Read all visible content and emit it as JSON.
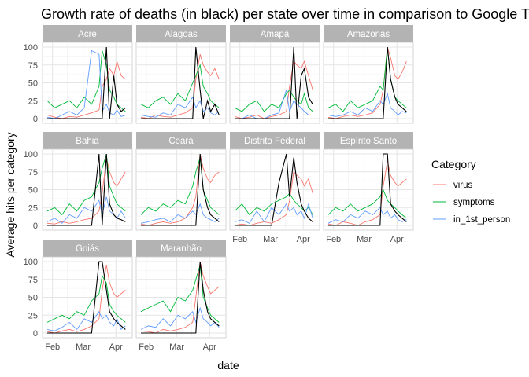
{
  "chart_data": {
    "type": "line",
    "title": "Growth rate of deaths (in black) per state over time in comparison to Google T",
    "xlabel": "date",
    "ylabel": "Average hits per category",
    "ylim": [
      0,
      100
    ],
    "yticks": [
      "0",
      "25",
      "50",
      "75",
      "100"
    ],
    "xticks": [
      "Feb",
      "Mar",
      "Apr"
    ],
    "grid": true,
    "legend": {
      "title": "Category",
      "placement": "right",
      "entries": [
        {
          "name": "virus",
          "color": "#F8766D"
        },
        {
          "name": "symptoms",
          "color": "#00BA38"
        },
        {
          "name": "in_1st_person",
          "color": "#619CFF"
        }
      ]
    },
    "deaths_color": "#000000",
    "x_domain": [
      "2020-01-27",
      "2020-04-12"
    ],
    "panels": [
      {
        "state": "Acre",
        "dates": [
          "2020-01-27",
          "2020-02-03",
          "2020-02-10",
          "2020-02-17",
          "2020-02-24",
          "2020-03-02",
          "2020-03-09",
          "2020-03-16",
          "2020-03-19",
          "2020-03-23",
          "2020-03-26",
          "2020-03-30",
          "2020-04-02",
          "2020-04-06",
          "2020-04-10"
        ],
        "virus": [
          5,
          2,
          0,
          3,
          2,
          5,
          8,
          12,
          45,
          55,
          70,
          60,
          80,
          60,
          55
        ],
        "symptoms": [
          25,
          15,
          20,
          25,
          15,
          30,
          20,
          45,
          95,
          75,
          40,
          30,
          20,
          15,
          10
        ],
        "in_1st_person": [
          2,
          0,
          5,
          10,
          5,
          15,
          95,
          90,
          10,
          20,
          8,
          5,
          12,
          3,
          5
        ],
        "deaths": [
          0,
          0,
          0,
          0,
          0,
          0,
          0,
          0,
          0,
          100,
          0,
          60,
          20,
          10,
          15
        ]
      },
      {
        "state": "Alagoas",
        "dates": [
          "2020-01-27",
          "2020-02-03",
          "2020-02-10",
          "2020-02-17",
          "2020-02-24",
          "2020-03-02",
          "2020-03-09",
          "2020-03-16",
          "2020-03-19",
          "2020-03-23",
          "2020-03-26",
          "2020-03-30",
          "2020-04-02",
          "2020-04-06",
          "2020-04-10"
        ],
        "virus": [
          2,
          0,
          5,
          3,
          2,
          5,
          8,
          15,
          55,
          90,
          75,
          65,
          60,
          70,
          55
        ],
        "symptoms": [
          20,
          15,
          25,
          30,
          20,
          35,
          25,
          50,
          60,
          75,
          45,
          35,
          25,
          20,
          15
        ],
        "in_1st_person": [
          5,
          3,
          2,
          8,
          5,
          20,
          15,
          30,
          15,
          25,
          10,
          15,
          8,
          5,
          10
        ],
        "deaths": [
          0,
          0,
          0,
          0,
          0,
          0,
          0,
          0,
          100,
          40,
          0,
          25,
          10,
          20,
          5
        ]
      },
      {
        "state": "Amapá",
        "dates": [
          "2020-01-27",
          "2020-02-03",
          "2020-02-10",
          "2020-02-17",
          "2020-02-24",
          "2020-03-02",
          "2020-03-09",
          "2020-03-16",
          "2020-03-19",
          "2020-03-23",
          "2020-03-26",
          "2020-03-30",
          "2020-04-02",
          "2020-04-06",
          "2020-04-10"
        ],
        "virus": [
          3,
          0,
          2,
          5,
          0,
          3,
          5,
          10,
          45,
          80,
          75,
          70,
          80,
          60,
          40
        ],
        "symptoms": [
          15,
          10,
          20,
          25,
          10,
          20,
          15,
          35,
          40,
          30,
          25,
          20,
          35,
          15,
          10
        ],
        "in_1st_person": [
          0,
          0,
          5,
          0,
          0,
          5,
          8,
          40,
          10,
          25,
          20,
          15,
          10,
          5,
          5
        ],
        "deaths": [
          0,
          0,
          0,
          0,
          0,
          0,
          0,
          0,
          0,
          100,
          0,
          60,
          70,
          30,
          20
        ]
      },
      {
        "state": "Amazonas",
        "dates": [
          "2020-01-27",
          "2020-02-03",
          "2020-02-10",
          "2020-02-17",
          "2020-02-24",
          "2020-03-02",
          "2020-03-09",
          "2020-03-16",
          "2020-03-19",
          "2020-03-23",
          "2020-03-26",
          "2020-03-30",
          "2020-04-02",
          "2020-04-06",
          "2020-04-10"
        ],
        "virus": [
          2,
          0,
          3,
          5,
          3,
          5,
          8,
          20,
          40,
          100,
          85,
          60,
          55,
          65,
          80
        ],
        "symptoms": [
          15,
          20,
          10,
          25,
          15,
          20,
          25,
          45,
          40,
          100,
          55,
          30,
          25,
          20,
          15
        ],
        "in_1st_person": [
          5,
          3,
          5,
          10,
          5,
          15,
          10,
          25,
          20,
          35,
          15,
          10,
          5,
          10,
          8
        ],
        "deaths": [
          0,
          0,
          0,
          0,
          0,
          0,
          0,
          0,
          0,
          100,
          55,
          30,
          20,
          15,
          10
        ]
      },
      {
        "state": "Bahia",
        "dates": [
          "2020-01-27",
          "2020-02-03",
          "2020-02-10",
          "2020-02-17",
          "2020-02-24",
          "2020-03-02",
          "2020-03-09",
          "2020-03-16",
          "2020-03-19",
          "2020-03-23",
          "2020-03-26",
          "2020-03-30",
          "2020-04-02",
          "2020-04-06",
          "2020-04-10"
        ],
        "virus": [
          3,
          2,
          5,
          3,
          5,
          8,
          10,
          20,
          45,
          95,
          75,
          60,
          55,
          65,
          75
        ],
        "symptoms": [
          20,
          25,
          15,
          30,
          20,
          35,
          40,
          60,
          80,
          100,
          55,
          40,
          30,
          25,
          20
        ],
        "in_1st_person": [
          5,
          10,
          3,
          15,
          10,
          25,
          20,
          35,
          15,
          40,
          20,
          15,
          10,
          20,
          10
        ],
        "deaths": [
          0,
          0,
          0,
          0,
          0,
          0,
          0,
          100,
          0,
          100,
          30,
          15,
          10,
          8,
          5
        ]
      },
      {
        "state": "Ceará",
        "dates": [
          "2020-01-27",
          "2020-02-03",
          "2020-02-10",
          "2020-02-17",
          "2020-02-24",
          "2020-03-02",
          "2020-03-09",
          "2020-03-16",
          "2020-03-19",
          "2020-03-23",
          "2020-03-26",
          "2020-03-30",
          "2020-04-02",
          "2020-04-06",
          "2020-04-10"
        ],
        "virus": [
          2,
          0,
          3,
          5,
          3,
          5,
          10,
          25,
          40,
          100,
          80,
          65,
          60,
          70,
          75
        ],
        "symptoms": [
          15,
          25,
          20,
          30,
          25,
          35,
          30,
          55,
          75,
          95,
          50,
          35,
          25,
          20,
          15
        ],
        "in_1st_person": [
          3,
          5,
          8,
          10,
          5,
          15,
          10,
          20,
          15,
          30,
          15,
          10,
          8,
          5,
          10
        ],
        "deaths": [
          0,
          0,
          0,
          0,
          0,
          0,
          0,
          0,
          0,
          100,
          50,
          25,
          15,
          10,
          5
        ]
      },
      {
        "state": "Distrito Federal",
        "dates": [
          "2020-01-27",
          "2020-02-03",
          "2020-02-10",
          "2020-02-17",
          "2020-02-24",
          "2020-03-02",
          "2020-03-09",
          "2020-03-16",
          "2020-03-19",
          "2020-03-23",
          "2020-03-26",
          "2020-03-30",
          "2020-04-02",
          "2020-04-06",
          "2020-04-10"
        ],
        "virus": [
          0,
          2,
          0,
          3,
          5,
          3,
          8,
          15,
          35,
          75,
          70,
          65,
          55,
          65,
          45
        ],
        "symptoms": [
          20,
          30,
          15,
          25,
          20,
          30,
          35,
          40,
          45,
          35,
          30,
          25,
          20,
          25,
          15
        ],
        "in_1st_person": [
          5,
          8,
          3,
          20,
          5,
          25,
          15,
          30,
          20,
          25,
          15,
          20,
          10,
          30,
          10
        ],
        "deaths": [
          0,
          0,
          0,
          0,
          0,
          0,
          60,
          100,
          40,
          95,
          60,
          30,
          20,
          10,
          5
        ]
      },
      {
        "state": "Espírito Santo",
        "dates": [
          "2020-01-27",
          "2020-02-03",
          "2020-02-10",
          "2020-02-17",
          "2020-02-24",
          "2020-03-02",
          "2020-03-09",
          "2020-03-16",
          "2020-03-19",
          "2020-03-23",
          "2020-03-26",
          "2020-03-30",
          "2020-04-02",
          "2020-04-06",
          "2020-04-10"
        ],
        "virus": [
          2,
          0,
          5,
          3,
          0,
          5,
          8,
          15,
          55,
          90,
          70,
          60,
          55,
          60,
          65
        ],
        "symptoms": [
          15,
          25,
          20,
          30,
          20,
          25,
          30,
          40,
          50,
          35,
          30,
          25,
          20,
          15,
          10
        ],
        "in_1st_person": [
          3,
          8,
          5,
          15,
          10,
          20,
          15,
          25,
          15,
          20,
          10,
          15,
          8,
          5,
          8
        ],
        "deaths": [
          0,
          0,
          0,
          0,
          0,
          0,
          0,
          0,
          100,
          100,
          30,
          20,
          15,
          10,
          5
        ]
      },
      {
        "state": "Goiás",
        "dates": [
          "2020-01-27",
          "2020-02-03",
          "2020-02-10",
          "2020-02-17",
          "2020-02-24",
          "2020-03-02",
          "2020-03-09",
          "2020-03-16",
          "2020-03-19",
          "2020-03-23",
          "2020-03-26",
          "2020-03-30",
          "2020-04-02",
          "2020-04-06",
          "2020-04-10"
        ],
        "virus": [
          2,
          0,
          3,
          5,
          2,
          5,
          10,
          20,
          60,
          95,
          70,
          55,
          50,
          55,
          60
        ],
        "symptoms": [
          15,
          20,
          25,
          20,
          30,
          25,
          45,
          55,
          80,
          70,
          40,
          30,
          25,
          20,
          15
        ],
        "in_1st_person": [
          5,
          3,
          8,
          15,
          5,
          20,
          15,
          30,
          20,
          25,
          15,
          10,
          20,
          5,
          10
        ],
        "deaths": [
          0,
          0,
          0,
          0,
          0,
          0,
          0,
          100,
          100,
          60,
          30,
          20,
          15,
          10,
          5
        ]
      },
      {
        "state": "Maranhão",
        "dates": [
          "2020-01-27",
          "2020-02-03",
          "2020-02-10",
          "2020-02-17",
          "2020-02-24",
          "2020-03-02",
          "2020-03-09",
          "2020-03-16",
          "2020-03-19",
          "2020-03-23",
          "2020-03-26",
          "2020-03-30",
          "2020-04-02",
          "2020-04-06",
          "2020-04-10"
        ],
        "virus": [
          3,
          2,
          0,
          5,
          3,
          5,
          8,
          15,
          50,
          100,
          80,
          65,
          55,
          60,
          65
        ],
        "symptoms": [
          30,
          35,
          40,
          45,
          30,
          50,
          45,
          60,
          75,
          95,
          50,
          35,
          25,
          20,
          15
        ],
        "in_1st_person": [
          5,
          10,
          8,
          20,
          10,
          25,
          20,
          30,
          15,
          35,
          20,
          15,
          10,
          15,
          8
        ],
        "deaths": [
          0,
          0,
          0,
          0,
          0,
          0,
          0,
          0,
          0,
          100,
          60,
          30,
          20,
          15,
          10
        ]
      }
    ]
  }
}
